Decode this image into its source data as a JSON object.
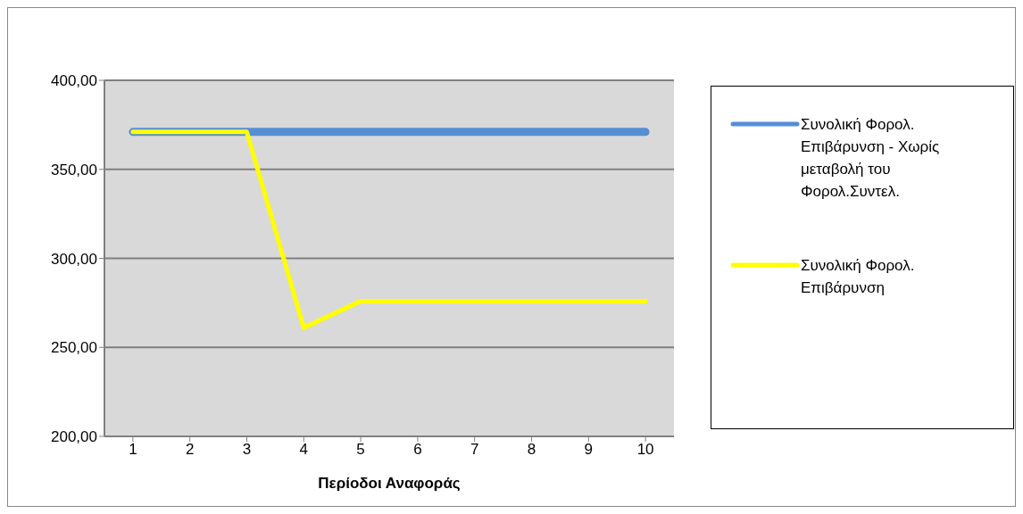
{
  "chart_data": {
    "type": "line",
    "xlabel": "Περίοδοι Αναφοράς",
    "categories": [
      "1",
      "2",
      "3",
      "4",
      "5",
      "6",
      "7",
      "8",
      "9",
      "10"
    ],
    "series": [
      {
        "name": "Συνολική Φορολ. Επιβάρυνση - Χωρίς μεταβολή του Φορολ.Συντελ.",
        "color": "#558ed5",
        "values": [
          371,
          371,
          371,
          371,
          371,
          371,
          371,
          371,
          371,
          371
        ]
      },
      {
        "name": "Συνολική Φορολ. Επιβάρυνση",
        "color": "#ffff00",
        "values": [
          371,
          371,
          371,
          261,
          276,
          276,
          276,
          276,
          276,
          276
        ]
      }
    ],
    "ylim": [
      200,
      400
    ],
    "yticks": [
      {
        "value": 200,
        "label": "200,00"
      },
      {
        "value": 250,
        "label": "250,00"
      },
      {
        "value": 300,
        "label": "300,00"
      },
      {
        "value": 350,
        "label": "350,00"
      },
      {
        "value": 400,
        "label": "400,00"
      }
    ],
    "grid": "y",
    "legend": "right",
    "marker": "none",
    "line_style": "solid"
  }
}
